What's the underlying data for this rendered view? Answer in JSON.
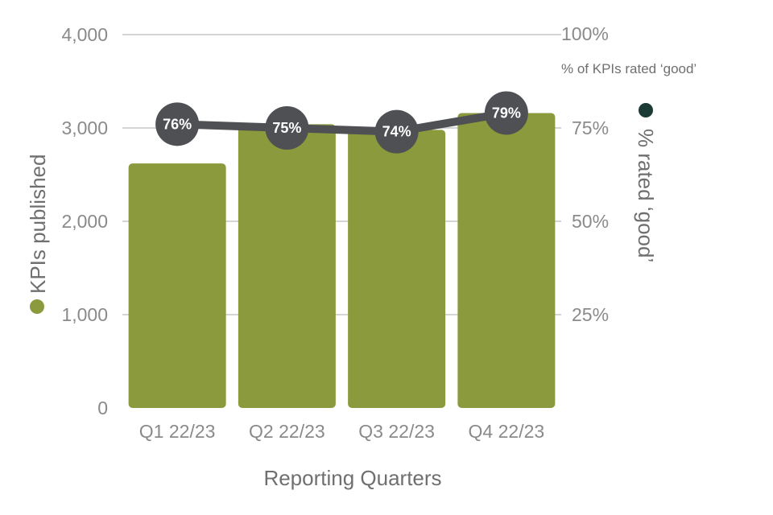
{
  "chart_data": {
    "type": "bar",
    "title": "",
    "xlabel": "Reporting Quarters",
    "categories": [
      "Q1 22/23",
      "Q2 22/23",
      "Q3 22/23",
      "Q4 22/23"
    ],
    "ylabel": "KPIs published",
    "ylim": [
      0,
      4000
    ],
    "yticks": [
      "0",
      "1,000",
      "2,000",
      "3,000",
      "4,000"
    ],
    "y2label": "% rated ‘good’",
    "y2lim": [
      0,
      100
    ],
    "y2ticks": [
      "25%",
      "50%",
      "75%",
      "100%"
    ],
    "y2_note": "% of KPIs rated ‘good’",
    "grid": true,
    "series": [
      {
        "name": "KPIs published",
        "type": "bar",
        "axis": "left",
        "color": "#8b9a3c",
        "values": [
          2620,
          3040,
          2980,
          3160
        ]
      },
      {
        "name": "% rated ‘good’",
        "type": "line",
        "axis": "right",
        "color": "#4f5054",
        "values": [
          76,
          75,
          74,
          79
        ],
        "labels": [
          "76%",
          "75%",
          "74%",
          "79%"
        ]
      }
    ],
    "legend_markers": {
      "left_color": "#8b9a3c",
      "right_color": "#1d3b35"
    }
  }
}
